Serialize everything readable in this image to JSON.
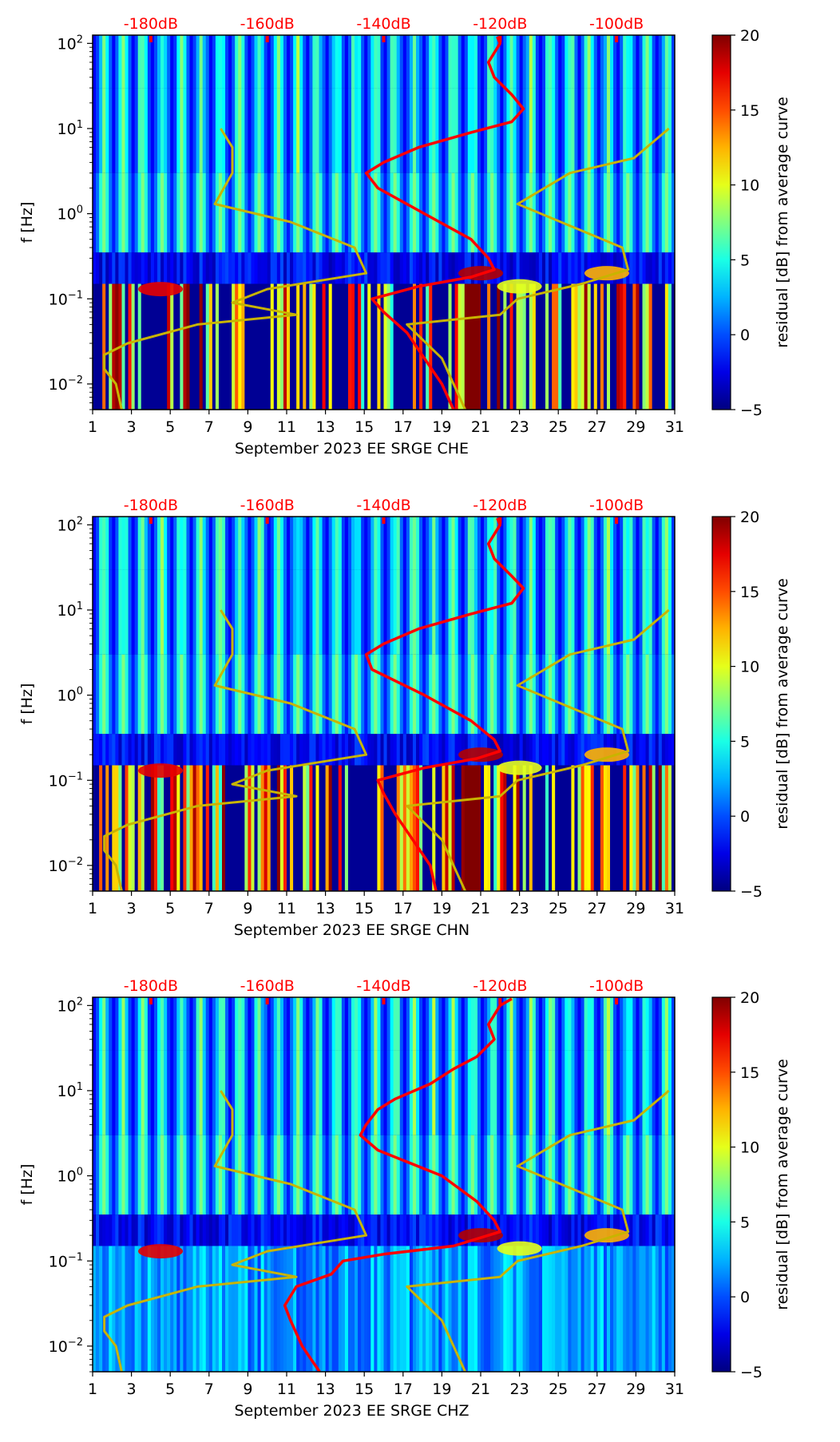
{
  "chart_data": [
    {
      "type": "heatmap",
      "title": "",
      "xlabel": "September 2023 EE SRGE  CHE",
      "ylabel": "f [Hz]",
      "x_ticks": [
        "1",
        "3",
        "5",
        "7",
        "9",
        "11",
        "13",
        "15",
        "17",
        "19",
        "21",
        "23",
        "25",
        "27",
        "29",
        "31"
      ],
      "xlim": [
        1,
        31
      ],
      "y_scale": "log",
      "ylim": [
        0.005,
        125
      ],
      "y_ticks": [
        "10^-2",
        "10^-1",
        "10^0",
        "10^1",
        "10^2"
      ],
      "top_axis_labels": [
        "-180dB",
        "-160dB",
        "-140dB",
        "-120dB",
        "-100dB"
      ],
      "top_axis_range_db": [
        -190,
        -90
      ],
      "colorbar": {
        "label": "residual [dB] from average curve",
        "range": [
          -5,
          20
        ],
        "ticks": [
          "-5",
          "0",
          "5",
          "10",
          "15",
          "20"
        ],
        "colormap": "jet"
      },
      "series": [
        {
          "name": "average PSD (red)",
          "color": "#ff0000",
          "points_db_vs_hz": [
            [
              -120.5,
              120
            ],
            [
              -120,
              100
            ],
            [
              -122,
              60
            ],
            [
              -121,
              40
            ],
            [
              -118,
              25
            ],
            [
              -116,
              17
            ],
            [
              -118,
              12
            ],
            [
              -125,
              9
            ],
            [
              -134,
              6
            ],
            [
              -140,
              4
            ],
            [
              -143,
              3
            ],
            [
              -141,
              2
            ],
            [
              -133,
              1
            ],
            [
              -125,
              0.5
            ],
            [
              -122,
              0.3
            ],
            [
              -121,
              0.22
            ],
            [
              -125,
              0.18
            ],
            [
              -134,
              0.14
            ],
            [
              -142,
              0.1
            ],
            [
              -140,
              0.07
            ],
            [
              -136,
              0.04
            ],
            [
              -133,
              0.02
            ],
            [
              -130,
              0.01
            ],
            [
              -128,
              0.005
            ]
          ]
        },
        {
          "name": "NLNM (yellow)",
          "color": "#c8b400",
          "points_db_vs_hz": [
            [
              -168,
              10
            ],
            [
              -166,
              6
            ],
            [
              -166,
              3
            ],
            [
              -169,
              1.3
            ],
            [
              -156,
              0.8
            ],
            [
              -145,
              0.4
            ],
            [
              -143,
              0.2
            ],
            [
              -160,
              0.13
            ],
            [
              -166,
              0.09
            ],
            [
              -155,
              0.065
            ],
            [
              -172,
              0.05
            ],
            [
              -184,
              0.03
            ],
            [
              -188,
              0.022
            ],
            [
              -188,
              0.015
            ],
            [
              -186,
              0.01
            ],
            [
              -185,
              0.005
            ]
          ]
        },
        {
          "name": "NHNM (yellow)",
          "color": "#c8b400",
          "points_db_vs_hz": [
            [
              -91,
              10
            ],
            [
              -97,
              4.5
            ],
            [
              -108,
              3
            ],
            [
              -117,
              1.3
            ],
            [
              -99,
              0.4
            ],
            [
              -98,
              0.22
            ],
            [
              -106,
              0.15
            ],
            [
              -117,
              0.1
            ],
            [
              -120,
              0.065
            ],
            [
              -136,
              0.05
            ],
            [
              -130,
              0.02
            ],
            [
              -126,
              0.005
            ]
          ]
        }
      ]
    },
    {
      "type": "heatmap",
      "title": "",
      "xlabel": "September 2023 EE SRGE  CHN",
      "ylabel": "f [Hz]",
      "x_ticks": [
        "1",
        "3",
        "5",
        "7",
        "9",
        "11",
        "13",
        "15",
        "17",
        "19",
        "21",
        "23",
        "25",
        "27",
        "29",
        "31"
      ],
      "xlim": [
        1,
        31
      ],
      "y_scale": "log",
      "ylim": [
        0.005,
        125
      ],
      "y_ticks": [
        "10^-2",
        "10^-1",
        "10^0",
        "10^1",
        "10^2"
      ],
      "top_axis_labels": [
        "-180dB",
        "-160dB",
        "-140dB",
        "-120dB",
        "-100dB"
      ],
      "top_axis_range_db": [
        -190,
        -90
      ],
      "colorbar": {
        "label": "residual [dB] from average curve",
        "range": [
          -5,
          20
        ],
        "ticks": [
          "-5",
          "0",
          "5",
          "10",
          "15",
          "20"
        ],
        "colormap": "jet"
      },
      "series": [
        {
          "name": "average PSD (red)",
          "color": "#ff0000",
          "points_db_vs_hz": [
            [
              -120.5,
              120
            ],
            [
              -120,
              100
            ],
            [
              -122,
              60
            ],
            [
              -121,
              40
            ],
            [
              -118,
              25
            ],
            [
              -116,
              18
            ],
            [
              -118,
              12
            ],
            [
              -125,
              9
            ],
            [
              -134,
              6
            ],
            [
              -140,
              4
            ],
            [
              -143,
              3
            ],
            [
              -142,
              2
            ],
            [
              -133,
              1
            ],
            [
              -125,
              0.5
            ],
            [
              -121,
              0.3
            ],
            [
              -120,
              0.22
            ],
            [
              -124,
              0.18
            ],
            [
              -133,
              0.14
            ],
            [
              -141,
              0.1
            ],
            [
              -140,
              0.07
            ],
            [
              -138,
              0.04
            ],
            [
              -135,
              0.02
            ],
            [
              -132,
              0.01
            ],
            [
              -131,
              0.005
            ]
          ]
        },
        {
          "name": "NLNM (yellow)",
          "color": "#c8b400",
          "points_db_vs_hz": [
            [
              -168,
              10
            ],
            [
              -166,
              6
            ],
            [
              -166,
              3
            ],
            [
              -169,
              1.3
            ],
            [
              -156,
              0.8
            ],
            [
              -145,
              0.4
            ],
            [
              -143,
              0.2
            ],
            [
              -160,
              0.13
            ],
            [
              -166,
              0.09
            ],
            [
              -155,
              0.065
            ],
            [
              -172,
              0.05
            ],
            [
              -184,
              0.03
            ],
            [
              -188,
              0.022
            ],
            [
              -188,
              0.015
            ],
            [
              -186,
              0.01
            ],
            [
              -185,
              0.005
            ]
          ]
        },
        {
          "name": "NHNM (yellow)",
          "color": "#c8b400",
          "points_db_vs_hz": [
            [
              -91,
              10
            ],
            [
              -97,
              4.5
            ],
            [
              -108,
              3
            ],
            [
              -117,
              1.3
            ],
            [
              -99,
              0.4
            ],
            [
              -98,
              0.22
            ],
            [
              -106,
              0.15
            ],
            [
              -117,
              0.1
            ],
            [
              -120,
              0.065
            ],
            [
              -136,
              0.05
            ],
            [
              -130,
              0.02
            ],
            [
              -126,
              0.005
            ]
          ]
        }
      ]
    },
    {
      "type": "heatmap",
      "title": "",
      "xlabel": "September 2023 EE SRGE  CHZ",
      "ylabel": "f [Hz]",
      "x_ticks": [
        "1",
        "3",
        "5",
        "7",
        "9",
        "11",
        "13",
        "15",
        "17",
        "19",
        "21",
        "23",
        "25",
        "27",
        "29",
        "31"
      ],
      "xlim": [
        1,
        31
      ],
      "y_scale": "log",
      "ylim": [
        0.005,
        125
      ],
      "y_ticks": [
        "10^-2",
        "10^-1",
        "10^0",
        "10^1",
        "10^2"
      ],
      "top_axis_labels": [
        "-180dB",
        "-160dB",
        "-140dB",
        "-120dB",
        "-100dB"
      ],
      "top_axis_range_db": [
        -190,
        -90
      ],
      "colorbar": {
        "label": "residual [dB] from average curve",
        "range": [
          -5,
          20
        ],
        "ticks": [
          "-5",
          "0",
          "5",
          "10",
          "15",
          "20"
        ],
        "colormap": "jet"
      },
      "series": [
        {
          "name": "average PSD (red)",
          "color": "#ff0000",
          "points_db_vs_hz": [
            [
              -118,
              120
            ],
            [
              -120,
              100
            ],
            [
              -122,
              60
            ],
            [
              -121,
              40
            ],
            [
              -124,
              25
            ],
            [
              -128,
              18
            ],
            [
              -132,
              12
            ],
            [
              -138,
              8
            ],
            [
              -141,
              6
            ],
            [
              -143,
              4
            ],
            [
              -144,
              3
            ],
            [
              -141,
              2
            ],
            [
              -130,
              1
            ],
            [
              -124,
              0.5
            ],
            [
              -121,
              0.3
            ],
            [
              -120,
              0.22
            ],
            [
              -128,
              0.15
            ],
            [
              -140,
              0.12
            ],
            [
              -147,
              0.1
            ],
            [
              -149,
              0.07
            ],
            [
              -155,
              0.05
            ],
            [
              -157,
              0.03
            ],
            [
              -156,
              0.02
            ],
            [
              -154,
              0.01
            ],
            [
              -151,
              0.005
            ]
          ]
        },
        {
          "name": "NLNM (yellow)",
          "color": "#c8b400",
          "points_db_vs_hz": [
            [
              -168,
              10
            ],
            [
              -166,
              6
            ],
            [
              -166,
              3
            ],
            [
              -169,
              1.3
            ],
            [
              -156,
              0.8
            ],
            [
              -145,
              0.4
            ],
            [
              -143,
              0.2
            ],
            [
              -160,
              0.13
            ],
            [
              -166,
              0.09
            ],
            [
              -155,
              0.065
            ],
            [
              -172,
              0.05
            ],
            [
              -184,
              0.03
            ],
            [
              -188,
              0.022
            ],
            [
              -188,
              0.015
            ],
            [
              -186,
              0.01
            ],
            [
              -185,
              0.005
            ]
          ]
        },
        {
          "name": "NHNM (yellow)",
          "color": "#c8b400",
          "points_db_vs_hz": [
            [
              -91,
              10
            ],
            [
              -97,
              4.5
            ],
            [
              -108,
              3
            ],
            [
              -117,
              1.3
            ],
            [
              -99,
              0.4
            ],
            [
              -98,
              0.22
            ],
            [
              -106,
              0.15
            ],
            [
              -117,
              0.1
            ],
            [
              -120,
              0.065
            ],
            [
              -136,
              0.05
            ],
            [
              -130,
              0.02
            ],
            [
              -126,
              0.005
            ]
          ]
        }
      ]
    }
  ]
}
